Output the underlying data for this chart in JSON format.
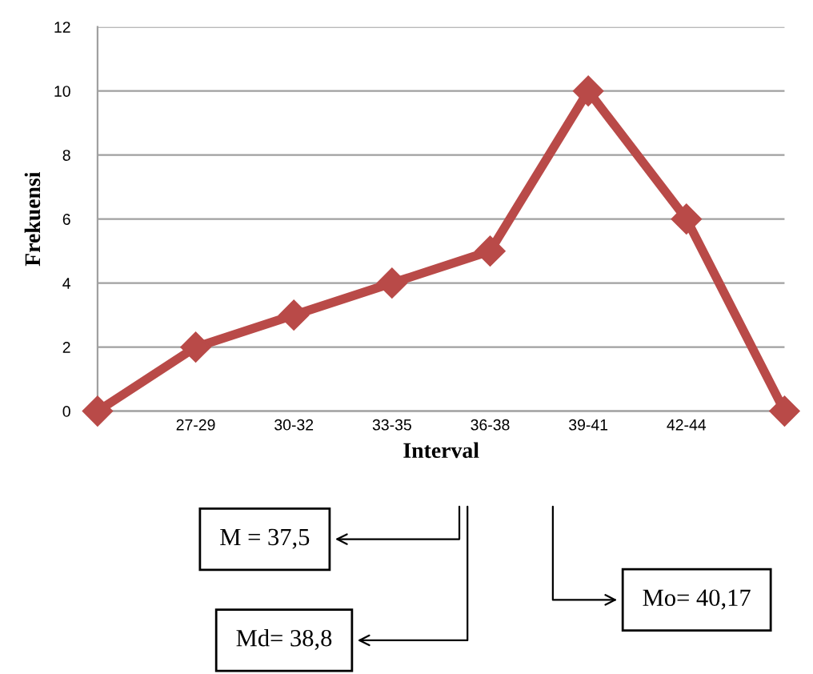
{
  "chart_data": {
    "type": "line",
    "xlabel": "Interval",
    "ylabel": "Frekuensi",
    "categories": [
      null,
      "27-29",
      "30-32",
      "33-35",
      "36-38",
      "39-41",
      "42-44",
      null
    ],
    "series": [
      {
        "color": "#b94a48",
        "values": [
          0,
          2,
          3,
          4,
          5,
          10,
          6,
          0
        ]
      }
    ],
    "ylim": [
      0,
      12
    ],
    "yticks": [
      0,
      2,
      4,
      6,
      8,
      10,
      12
    ],
    "grid": "y",
    "marker": "diamond",
    "line_style": "solid",
    "annotations": [
      "M = 37,5",
      "Md= 38,8",
      "Mo= 40,17"
    ]
  }
}
